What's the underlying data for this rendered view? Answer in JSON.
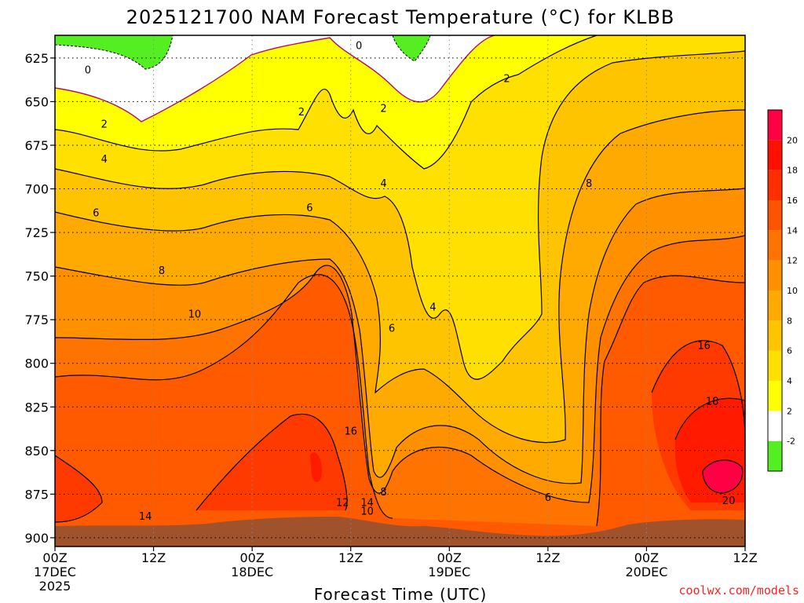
{
  "chart_data": {
    "type": "heatmap",
    "title": "2025121700 NAM Forecast Temperature (°C) for KLBB",
    "xlabel": "Forecast Time (UTC)",
    "ylabel": "",
    "y_scale": "pressure (hPa), increasing downward",
    "ylim": [
      905,
      612
    ],
    "y_ticks": [
      625,
      650,
      675,
      700,
      725,
      750,
      775,
      800,
      825,
      850,
      875,
      900
    ],
    "x_ticks": [
      {
        "hour": 0,
        "label": "00Z",
        "sub": [
          "17DEC",
          "2025"
        ]
      },
      {
        "hour": 12,
        "label": "12Z",
        "sub": []
      },
      {
        "hour": 24,
        "label": "00Z",
        "sub": [
          "18DEC"
        ]
      },
      {
        "hour": 36,
        "label": "12Z",
        "sub": []
      },
      {
        "hour": 48,
        "label": "00Z",
        "sub": [
          "19DEC"
        ]
      },
      {
        "hour": 60,
        "label": "12Z",
        "sub": []
      },
      {
        "hour": 72,
        "label": "00Z",
        "sub": [
          "20DEC"
        ]
      },
      {
        "hour": 84,
        "label": "12Z",
        "sub": []
      }
    ],
    "grid": "dotted",
    "colorbar": {
      "placement": "right",
      "levels": [
        -2,
        2,
        4,
        6,
        8,
        10,
        12,
        14,
        16,
        18,
        20
      ],
      "colors": [
        "#55ee22",
        "#ffffff",
        "#ffff00",
        "#ffe000",
        "#ffc400",
        "#ffaa00",
        "#ff9000",
        "#ff7400",
        "#ff5500",
        "#ff2e00",
        "#ff1000",
        "#ff0044"
      ]
    },
    "terrain_color": "#a0522d",
    "contour_labels": [
      {
        "value": "0",
        "hour": 4,
        "p": 632
      },
      {
        "value": "0",
        "hour": 37,
        "p": 618
      },
      {
        "value": "2",
        "hour": 6,
        "p": 663
      },
      {
        "value": "2",
        "hour": 30,
        "p": 656
      },
      {
        "value": "2",
        "hour": 40,
        "p": 654
      },
      {
        "value": "2",
        "hour": 55,
        "p": 637
      },
      {
        "value": "4",
        "hour": 6,
        "p": 683
      },
      {
        "value": "4",
        "hour": 40,
        "p": 697
      },
      {
        "value": "6",
        "hour": 5,
        "p": 714
      },
      {
        "value": "6",
        "hour": 31,
        "p": 711
      },
      {
        "value": "6",
        "hour": 41,
        "p": 780
      },
      {
        "value": "6",
        "hour": 60,
        "p": 877
      },
      {
        "value": "4",
        "hour": 46,
        "p": 768
      },
      {
        "value": "8",
        "hour": 13,
        "p": 747
      },
      {
        "value": "8",
        "hour": 65,
        "p": 697
      },
      {
        "value": "10",
        "hour": 17,
        "p": 772
      },
      {
        "value": "10",
        "hour": 38,
        "p": 885
      },
      {
        "value": "12",
        "hour": 35,
        "p": 880
      },
      {
        "value": "14",
        "hour": 11,
        "p": 888
      },
      {
        "value": "14",
        "hour": 38,
        "p": 880
      },
      {
        "value": "8",
        "hour": 40,
        "p": 874
      },
      {
        "value": "16",
        "hour": 36,
        "p": 839
      },
      {
        "value": "16",
        "hour": 79,
        "p": 790
      },
      {
        "value": "18",
        "hour": 80,
        "p": 822
      },
      {
        "value": "20",
        "hour": 82,
        "p": 879
      }
    ]
  },
  "credit": "coolwx.com/models"
}
